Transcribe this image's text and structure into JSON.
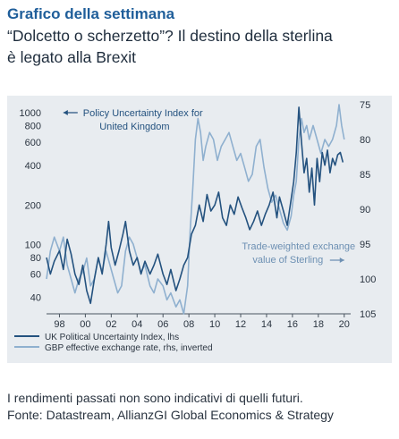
{
  "header": {
    "kicker": "Grafico della settimana",
    "title_line1": "“Dolcetto o scherzetto”? Il destino della sterlina",
    "title_line2": "è legato alla Brexit"
  },
  "footer": {
    "disclaimer": "I rendimenti passati non sono indicativi di quelli futuri.",
    "source": "Fonte: Datastream, AllianzGI Global Economics & Strategy"
  },
  "colors": {
    "panel": "#e8ecf0",
    "epu_line": "#24527f",
    "gbp_line": "#8fb0cf",
    "annotation": "#24527f"
  },
  "chart_data": {
    "type": "line",
    "x_ticks": [
      "98",
      "00",
      "02",
      "04",
      "06",
      "08",
      "10",
      "12",
      "14",
      "16",
      "18",
      "20"
    ],
    "x_range": [
      1997,
      2020.5
    ],
    "y_left": {
      "scale": "log",
      "range": [
        30,
        1150
      ],
      "ticks": [
        "40",
        "60",
        "80",
        "100",
        "200",
        "400",
        "600",
        "800",
        "1000"
      ]
    },
    "y_right": {
      "inverted": true,
      "range": [
        75,
        105
      ],
      "ticks": [
        "75",
        "80",
        "85",
        "90",
        "95",
        "100",
        "105"
      ]
    },
    "annotations": {
      "left_label_line1": "Policy Uncertainty Index for",
      "left_label_line2": "United Kingdom",
      "right_label_line1": "Trade-weighted exchange",
      "right_label_line2": "value of Sterling"
    },
    "series": [
      {
        "name": "UK Political Uncertainty Index, lhs",
        "axis": "left",
        "points": [
          [
            1997.0,
            80
          ],
          [
            1997.3,
            60
          ],
          [
            1997.6,
            75
          ],
          [
            1998.0,
            90
          ],
          [
            1998.3,
            65
          ],
          [
            1998.6,
            110
          ],
          [
            1998.9,
            85
          ],
          [
            1999.2,
            60
          ],
          [
            1999.5,
            50
          ],
          [
            1999.8,
            70
          ],
          [
            2000.1,
            45
          ],
          [
            2000.4,
            36
          ],
          [
            2000.7,
            55
          ],
          [
            2001.0,
            80
          ],
          [
            2001.3,
            60
          ],
          [
            2001.6,
            100
          ],
          [
            2001.8,
            150
          ],
          [
            2002.0,
            95
          ],
          [
            2002.3,
            70
          ],
          [
            2002.6,
            90
          ],
          [
            2002.9,
            120
          ],
          [
            2003.1,
            150
          ],
          [
            2003.4,
            90
          ],
          [
            2003.7,
            70
          ],
          [
            2004.0,
            80
          ],
          [
            2004.3,
            60
          ],
          [
            2004.6,
            75
          ],
          [
            2005.0,
            60
          ],
          [
            2005.3,
            70
          ],
          [
            2005.6,
            85
          ],
          [
            2006.0,
            60
          ],
          [
            2006.3,
            50
          ],
          [
            2006.6,
            65
          ],
          [
            2007.0,
            45
          ],
          [
            2007.3,
            55
          ],
          [
            2007.6,
            70
          ],
          [
            2007.9,
            80
          ],
          [
            2008.2,
            120
          ],
          [
            2008.5,
            140
          ],
          [
            2008.8,
            200
          ],
          [
            2009.1,
            150
          ],
          [
            2009.4,
            240
          ],
          [
            2009.7,
            180
          ],
          [
            2010.0,
            200
          ],
          [
            2010.3,
            250
          ],
          [
            2010.6,
            160
          ],
          [
            2010.9,
            140
          ],
          [
            2011.2,
            200
          ],
          [
            2011.5,
            170
          ],
          [
            2011.8,
            230
          ],
          [
            2012.1,
            190
          ],
          [
            2012.4,
            160
          ],
          [
            2012.7,
            130
          ],
          [
            2013.0,
            150
          ],
          [
            2013.3,
            180
          ],
          [
            2013.6,
            140
          ],
          [
            2013.9,
            170
          ],
          [
            2014.2,
            200
          ],
          [
            2014.5,
            250
          ],
          [
            2014.8,
            160
          ],
          [
            2015.0,
            230
          ],
          [
            2015.3,
            180
          ],
          [
            2015.6,
            140
          ],
          [
            2015.9,
            220
          ],
          [
            2016.1,
            300
          ],
          [
            2016.3,
            500
          ],
          [
            2016.5,
            1100
          ],
          [
            2016.7,
            600
          ],
          [
            2016.9,
            350
          ],
          [
            2017.1,
            450
          ],
          [
            2017.3,
            250
          ],
          [
            2017.5,
            380
          ],
          [
            2017.7,
            200
          ],
          [
            2017.9,
            450
          ],
          [
            2018.1,
            300
          ],
          [
            2018.3,
            500
          ],
          [
            2018.5,
            400
          ],
          [
            2018.7,
            520
          ],
          [
            2018.9,
            350
          ],
          [
            2019.1,
            450
          ],
          [
            2019.3,
            400
          ],
          [
            2019.5,
            480
          ],
          [
            2019.7,
            500
          ],
          [
            2019.9,
            420
          ]
        ]
      },
      {
        "name": "GBP effective exchange rate, rhs, inverted",
        "axis": "right",
        "points": [
          [
            1997.0,
            100
          ],
          [
            1997.3,
            96
          ],
          [
            1997.6,
            94
          ],
          [
            1998.0,
            96
          ],
          [
            1998.3,
            94
          ],
          [
            1998.6,
            98
          ],
          [
            1998.9,
            100
          ],
          [
            1999.2,
            102
          ],
          [
            1999.5,
            100
          ],
          [
            1999.8,
            99
          ],
          [
            2000.1,
            97
          ],
          [
            2000.4,
            101
          ],
          [
            2000.7,
            100
          ],
          [
            2001.0,
            97
          ],
          [
            2001.3,
            99
          ],
          [
            2001.6,
            96
          ],
          [
            2001.9,
            98
          ],
          [
            2002.2,
            100
          ],
          [
            2002.5,
            102
          ],
          [
            2002.8,
            101
          ],
          [
            2003.1,
            96
          ],
          [
            2003.4,
            94
          ],
          [
            2003.7,
            95
          ],
          [
            2004.0,
            97
          ],
          [
            2004.3,
            99
          ],
          [
            2004.6,
            98
          ],
          [
            2005.0,
            101
          ],
          [
            2005.3,
            102
          ],
          [
            2005.6,
            100
          ],
          [
            2006.0,
            101
          ],
          [
            2006.3,
            103
          ],
          [
            2006.6,
            102
          ],
          [
            2007.0,
            104
          ],
          [
            2007.3,
            103
          ],
          [
            2007.6,
            105
          ],
          [
            2007.9,
            101
          ],
          [
            2008.1,
            93
          ],
          [
            2008.3,
            87
          ],
          [
            2008.5,
            80
          ],
          [
            2008.7,
            77
          ],
          [
            2008.9,
            79
          ],
          [
            2009.1,
            83
          ],
          [
            2009.3,
            81
          ],
          [
            2009.6,
            79
          ],
          [
            2009.9,
            80
          ],
          [
            2010.2,
            83
          ],
          [
            2010.5,
            81
          ],
          [
            2010.8,
            80
          ],
          [
            2011.1,
            79
          ],
          [
            2011.4,
            81
          ],
          [
            2011.7,
            83
          ],
          [
            2012.0,
            82
          ],
          [
            2012.3,
            84
          ],
          [
            2012.6,
            86
          ],
          [
            2012.9,
            85
          ],
          [
            2013.2,
            81
          ],
          [
            2013.5,
            80
          ],
          [
            2013.8,
            84
          ],
          [
            2014.1,
            87
          ],
          [
            2014.4,
            89
          ],
          [
            2014.7,
            88
          ],
          [
            2015.0,
            90
          ],
          [
            2015.3,
            92
          ],
          [
            2015.6,
            93
          ],
          [
            2015.9,
            91
          ],
          [
            2016.1,
            88
          ],
          [
            2016.3,
            86
          ],
          [
            2016.5,
            80
          ],
          [
            2016.7,
            77
          ],
          [
            2016.9,
            79
          ],
          [
            2017.1,
            78
          ],
          [
            2017.3,
            80
          ],
          [
            2017.6,
            78
          ],
          [
            2017.9,
            80
          ],
          [
            2018.2,
            82
          ],
          [
            2018.5,
            80
          ],
          [
            2018.8,
            81
          ],
          [
            2019.1,
            80
          ],
          [
            2019.4,
            78
          ],
          [
            2019.6,
            75
          ],
          [
            2019.8,
            78
          ],
          [
            2020.0,
            80
          ]
        ]
      }
    ]
  }
}
